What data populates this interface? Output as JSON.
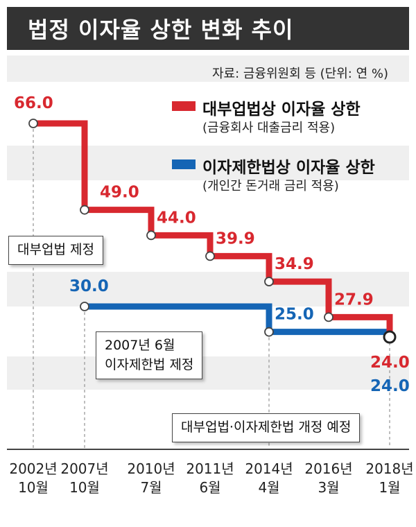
{
  "title": "법정 이자율 상한 변화 추이",
  "source": "자료: 금융위원회 등 (단위: 연 %)",
  "legend": {
    "red": {
      "label": "대부업법상 이자율 상한",
      "sub": "(금융회사 대출금리 적용)"
    },
    "blue": {
      "label": "이자제한법상 이자율 상한",
      "sub": "(개인간 돈거래 금리 적용)"
    }
  },
  "callouts": {
    "law2002": "대부업법 제정",
    "law2007_line1": "2007년 6월",
    "law2007_line2": "이자제한법 제정",
    "amend2018": "대부업법·이자제한법 개정 예정"
  },
  "colors": {
    "red": "#d8282f",
    "blue": "#1565b5",
    "band": "#efefef",
    "axis": "#444444"
  },
  "chart_data": {
    "type": "line",
    "step": true,
    "categories": [
      [
        "2002년",
        "10월"
      ],
      [
        "2007년",
        "10월"
      ],
      [
        "2010년",
        "7월"
      ],
      [
        "2011년",
        "6월"
      ],
      [
        "2014년",
        "4월"
      ],
      [
        "2016년",
        "3월"
      ],
      [
        "2018년",
        "1월"
      ]
    ],
    "series": [
      {
        "name": "대부업법상 이자율 상한",
        "color": "#d8282f",
        "points": [
          {
            "x": 0,
            "y": 66.0,
            "label": "66.0"
          },
          {
            "x": 1,
            "y": 49.0,
            "label": "49.0"
          },
          {
            "x": 2,
            "y": 44.0,
            "label": "44.0"
          },
          {
            "x": 3,
            "y": 39.9,
            "label": "39.9"
          },
          {
            "x": 4,
            "y": 34.9,
            "label": "34.9"
          },
          {
            "x": 5,
            "y": 27.9,
            "label": "27.9"
          },
          {
            "x": 6,
            "y": 24.0,
            "label": "24.0"
          }
        ]
      },
      {
        "name": "이자제한법상 이자율 상한",
        "color": "#1565b5",
        "points": [
          {
            "x": 1,
            "y": 30.0,
            "label": "30.0"
          },
          {
            "x": 4,
            "y": 25.0,
            "label": "25.0"
          },
          {
            "x": 6,
            "y": 24.0,
            "label": "24.0"
          }
        ]
      }
    ],
    "ylim": [
      24,
      66
    ]
  }
}
